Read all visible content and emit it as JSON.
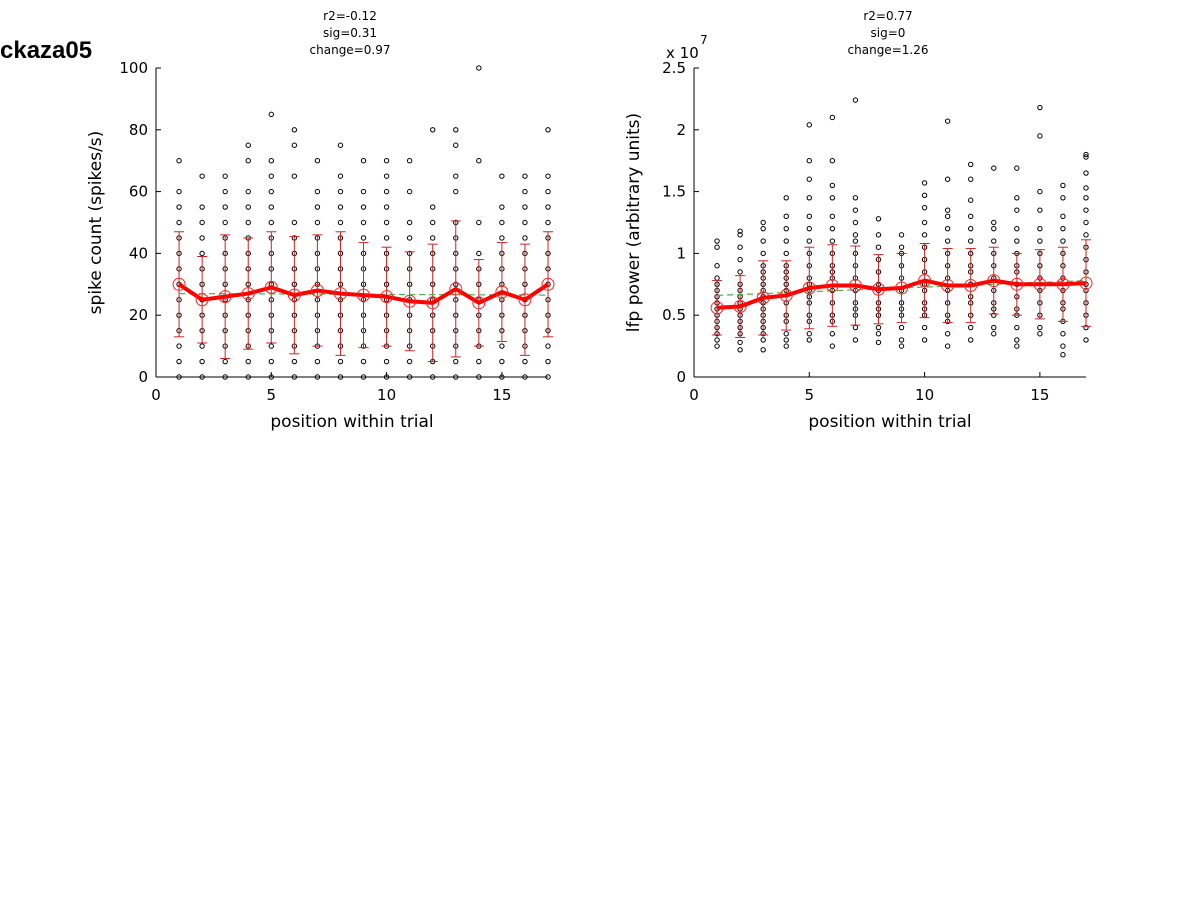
{
  "figure_title": "ckaza05",
  "chart_data": [
    {
      "type": "scatter",
      "stats": [
        "r2=-0.12",
        "sig=0.31",
        "change=0.97"
      ],
      "xlabel": "position within trial",
      "ylabel": "spike count (spikes/s)",
      "exponent_label": "",
      "xlim": [
        0,
        17
      ],
      "ylim": [
        0,
        100
      ],
      "xticks": [
        0,
        5,
        10,
        15
      ],
      "yticks": [
        0,
        20,
        40,
        60,
        80,
        100
      ],
      "ytick_labels": [
        "0",
        "20",
        "40",
        "60",
        "80",
        "100"
      ],
      "positions": [
        1,
        2,
        3,
        4,
        5,
        6,
        7,
        8,
        9,
        10,
        11,
        12,
        13,
        14,
        15,
        16,
        17
      ],
      "points": [
        [
          0,
          5,
          10,
          15,
          20,
          25,
          30,
          35,
          40,
          45,
          50,
          55,
          60,
          70
        ],
        [
          0,
          5,
          10,
          15,
          20,
          25,
          30,
          35,
          40,
          45,
          50,
          55,
          65
        ],
        [
          0,
          5,
          10,
          15,
          20,
          25,
          30,
          35,
          40,
          45,
          50,
          55,
          60,
          65
        ],
        [
          0,
          5,
          10,
          15,
          20,
          25,
          30,
          35,
          40,
          45,
          50,
          55,
          60,
          70,
          75
        ],
        [
          0,
          5,
          10,
          15,
          20,
          25,
          30,
          35,
          40,
          45,
          50,
          55,
          60,
          65,
          70,
          85
        ],
        [
          0,
          5,
          10,
          15,
          20,
          25,
          30,
          35,
          40,
          45,
          50,
          65,
          75,
          80
        ],
        [
          0,
          5,
          10,
          15,
          20,
          25,
          30,
          35,
          40,
          45,
          50,
          55,
          60,
          70
        ],
        [
          0,
          5,
          10,
          15,
          20,
          25,
          30,
          35,
          40,
          45,
          50,
          55,
          60,
          65,
          75
        ],
        [
          0,
          5,
          10,
          15,
          20,
          25,
          30,
          35,
          40,
          45,
          50,
          55,
          60,
          70
        ],
        [
          0,
          5,
          10,
          15,
          20,
          25,
          30,
          35,
          40,
          45,
          50,
          55,
          60,
          65,
          70
        ],
        [
          0,
          5,
          10,
          15,
          20,
          25,
          30,
          35,
          40,
          45,
          50,
          60,
          70
        ],
        [
          0,
          5,
          10,
          15,
          20,
          25,
          30,
          35,
          40,
          45,
          50,
          55,
          80
        ],
        [
          0,
          5,
          10,
          15,
          20,
          25,
          30,
          35,
          40,
          45,
          50,
          60,
          65,
          75,
          80
        ],
        [
          0,
          5,
          10,
          15,
          20,
          25,
          30,
          35,
          40,
          50,
          70,
          100
        ],
        [
          0,
          5,
          10,
          15,
          20,
          25,
          30,
          35,
          40,
          45,
          50,
          55,
          65
        ],
        [
          0,
          5,
          10,
          15,
          20,
          25,
          30,
          35,
          40,
          45,
          50,
          55,
          60,
          65
        ],
        [
          0,
          5,
          10,
          15,
          20,
          25,
          30,
          35,
          40,
          45,
          50,
          55,
          60,
          65,
          80
        ]
      ],
      "means": [
        30,
        25,
        26,
        27,
        29,
        26.5,
        28,
        27,
        26.5,
        26,
        24.5,
        24,
        28.5,
        24,
        27.5,
        25,
        30
      ],
      "sd": [
        17,
        14,
        20,
        18,
        18,
        19,
        18,
        20,
        17,
        16,
        16,
        19,
        22,
        14,
        16,
        18,
        17
      ],
      "fit": [
        27,
        26.5
      ]
    },
    {
      "type": "scatter",
      "stats": [
        "r2=0.77",
        "sig=0",
        "change=1.26"
      ],
      "xlabel": "position within trial",
      "ylabel": "lfp power (arbitrary units)",
      "exponent_label": "x 10",
      "exponent_power": "7",
      "xlim": [
        0,
        17
      ],
      "ylim": [
        0,
        2.5
      ],
      "xticks": [
        0,
        5,
        10,
        15
      ],
      "yticks": [
        0,
        0.5,
        1,
        1.5,
        2,
        2.5
      ],
      "ytick_labels": [
        "0",
        "0.5",
        "1",
        "1.5",
        "2",
        "2.5"
      ],
      "positions": [
        1,
        2,
        3,
        4,
        5,
        6,
        7,
        8,
        9,
        10,
        11,
        12,
        13,
        14,
        15,
        16,
        17
      ],
      "points": [
        [
          0.25,
          0.3,
          0.35,
          0.4,
          0.45,
          0.5,
          0.55,
          0.6,
          0.65,
          0.7,
          0.75,
          0.8,
          0.9,
          1.05,
          1.1
        ],
        [
          0.22,
          0.28,
          0.35,
          0.4,
          0.45,
          0.5,
          0.55,
          0.6,
          0.65,
          0.7,
          0.75,
          0.85,
          0.95,
          1.05,
          1.15,
          1.18
        ],
        [
          0.22,
          0.3,
          0.35,
          0.4,
          0.45,
          0.5,
          0.55,
          0.6,
          0.65,
          0.7,
          0.75,
          0.8,
          0.85,
          0.9,
          1.0,
          1.1,
          1.2,
          1.25
        ],
        [
          0.25,
          0.3,
          0.35,
          0.45,
          0.5,
          0.6,
          0.7,
          0.75,
          0.8,
          0.85,
          0.9,
          1.0,
          1.1,
          1.2,
          1.3,
          1.45
        ],
        [
          0.3,
          0.35,
          0.45,
          0.5,
          0.6,
          0.65,
          0.7,
          0.75,
          0.8,
          0.9,
          1.0,
          1.1,
          1.2,
          1.3,
          1.45,
          1.6,
          1.75,
          2.04
        ],
        [
          0.25,
          0.35,
          0.45,
          0.5,
          0.6,
          0.7,
          0.8,
          0.85,
          0.9,
          1.0,
          1.1,
          1.2,
          1.3,
          1.45,
          1.55,
          1.75,
          2.1
        ],
        [
          0.3,
          0.4,
          0.5,
          0.55,
          0.6,
          0.7,
          0.8,
          0.9,
          1.0,
          1.1,
          1.15,
          1.25,
          1.35,
          1.45,
          2.24
        ],
        [
          0.28,
          0.35,
          0.4,
          0.5,
          0.55,
          0.6,
          0.7,
          0.75,
          0.85,
          0.95,
          1.05,
          1.15,
          1.28
        ],
        [
          0.25,
          0.3,
          0.4,
          0.5,
          0.55,
          0.6,
          0.7,
          0.8,
          0.9,
          1.0,
          1.05,
          1.15
        ],
        [
          0.3,
          0.4,
          0.5,
          0.55,
          0.6,
          0.7,
          0.75,
          0.85,
          0.95,
          1.05,
          1.15,
          1.25,
          1.37,
          1.47,
          1.57
        ],
        [
          0.25,
          0.35,
          0.45,
          0.5,
          0.6,
          0.7,
          0.8,
          0.9,
          1.0,
          1.1,
          1.2,
          1.3,
          1.35,
          1.6,
          2.07
        ],
        [
          0.3,
          0.4,
          0.5,
          0.6,
          0.65,
          0.75,
          0.85,
          0.9,
          1.0,
          1.1,
          1.2,
          1.3,
          1.43,
          1.6,
          1.72
        ],
        [
          0.35,
          0.4,
          0.5,
          0.55,
          0.6,
          0.7,
          0.8,
          0.9,
          1.0,
          1.1,
          1.2,
          1.25,
          1.69
        ],
        [
          0.25,
          0.3,
          0.4,
          0.5,
          0.55,
          0.65,
          0.75,
          0.85,
          0.9,
          1.0,
          1.1,
          1.2,
          1.35,
          1.45,
          1.69
        ],
        [
          0.35,
          0.4,
          0.5,
          0.6,
          0.7,
          0.8,
          0.9,
          1.0,
          1.1,
          1.2,
          1.35,
          1.5,
          1.95,
          2.18
        ],
        [
          0.18,
          0.25,
          0.35,
          0.45,
          0.55,
          0.6,
          0.7,
          0.8,
          0.9,
          1.0,
          1.1,
          1.2,
          1.3,
          1.45,
          1.55
        ],
        [
          0.3,
          0.4,
          0.5,
          0.6,
          0.7,
          0.75,
          0.85,
          0.95,
          1.05,
          1.15,
          1.25,
          1.35,
          1.45,
          1.53,
          1.65,
          1.78,
          1.8
        ]
      ],
      "means": [
        0.56,
        0.57,
        0.64,
        0.66,
        0.72,
        0.74,
        0.74,
        0.71,
        0.72,
        0.78,
        0.74,
        0.74,
        0.78,
        0.75,
        0.75,
        0.75,
        0.76
      ],
      "sd": [
        0.22,
        0.25,
        0.3,
        0.28,
        0.33,
        0.33,
        0.32,
        0.28,
        0.28,
        0.3,
        0.3,
        0.3,
        0.27,
        0.25,
        0.28,
        0.3,
        0.35
      ],
      "fit": [
        0.66,
        0.78
      ]
    }
  ]
}
